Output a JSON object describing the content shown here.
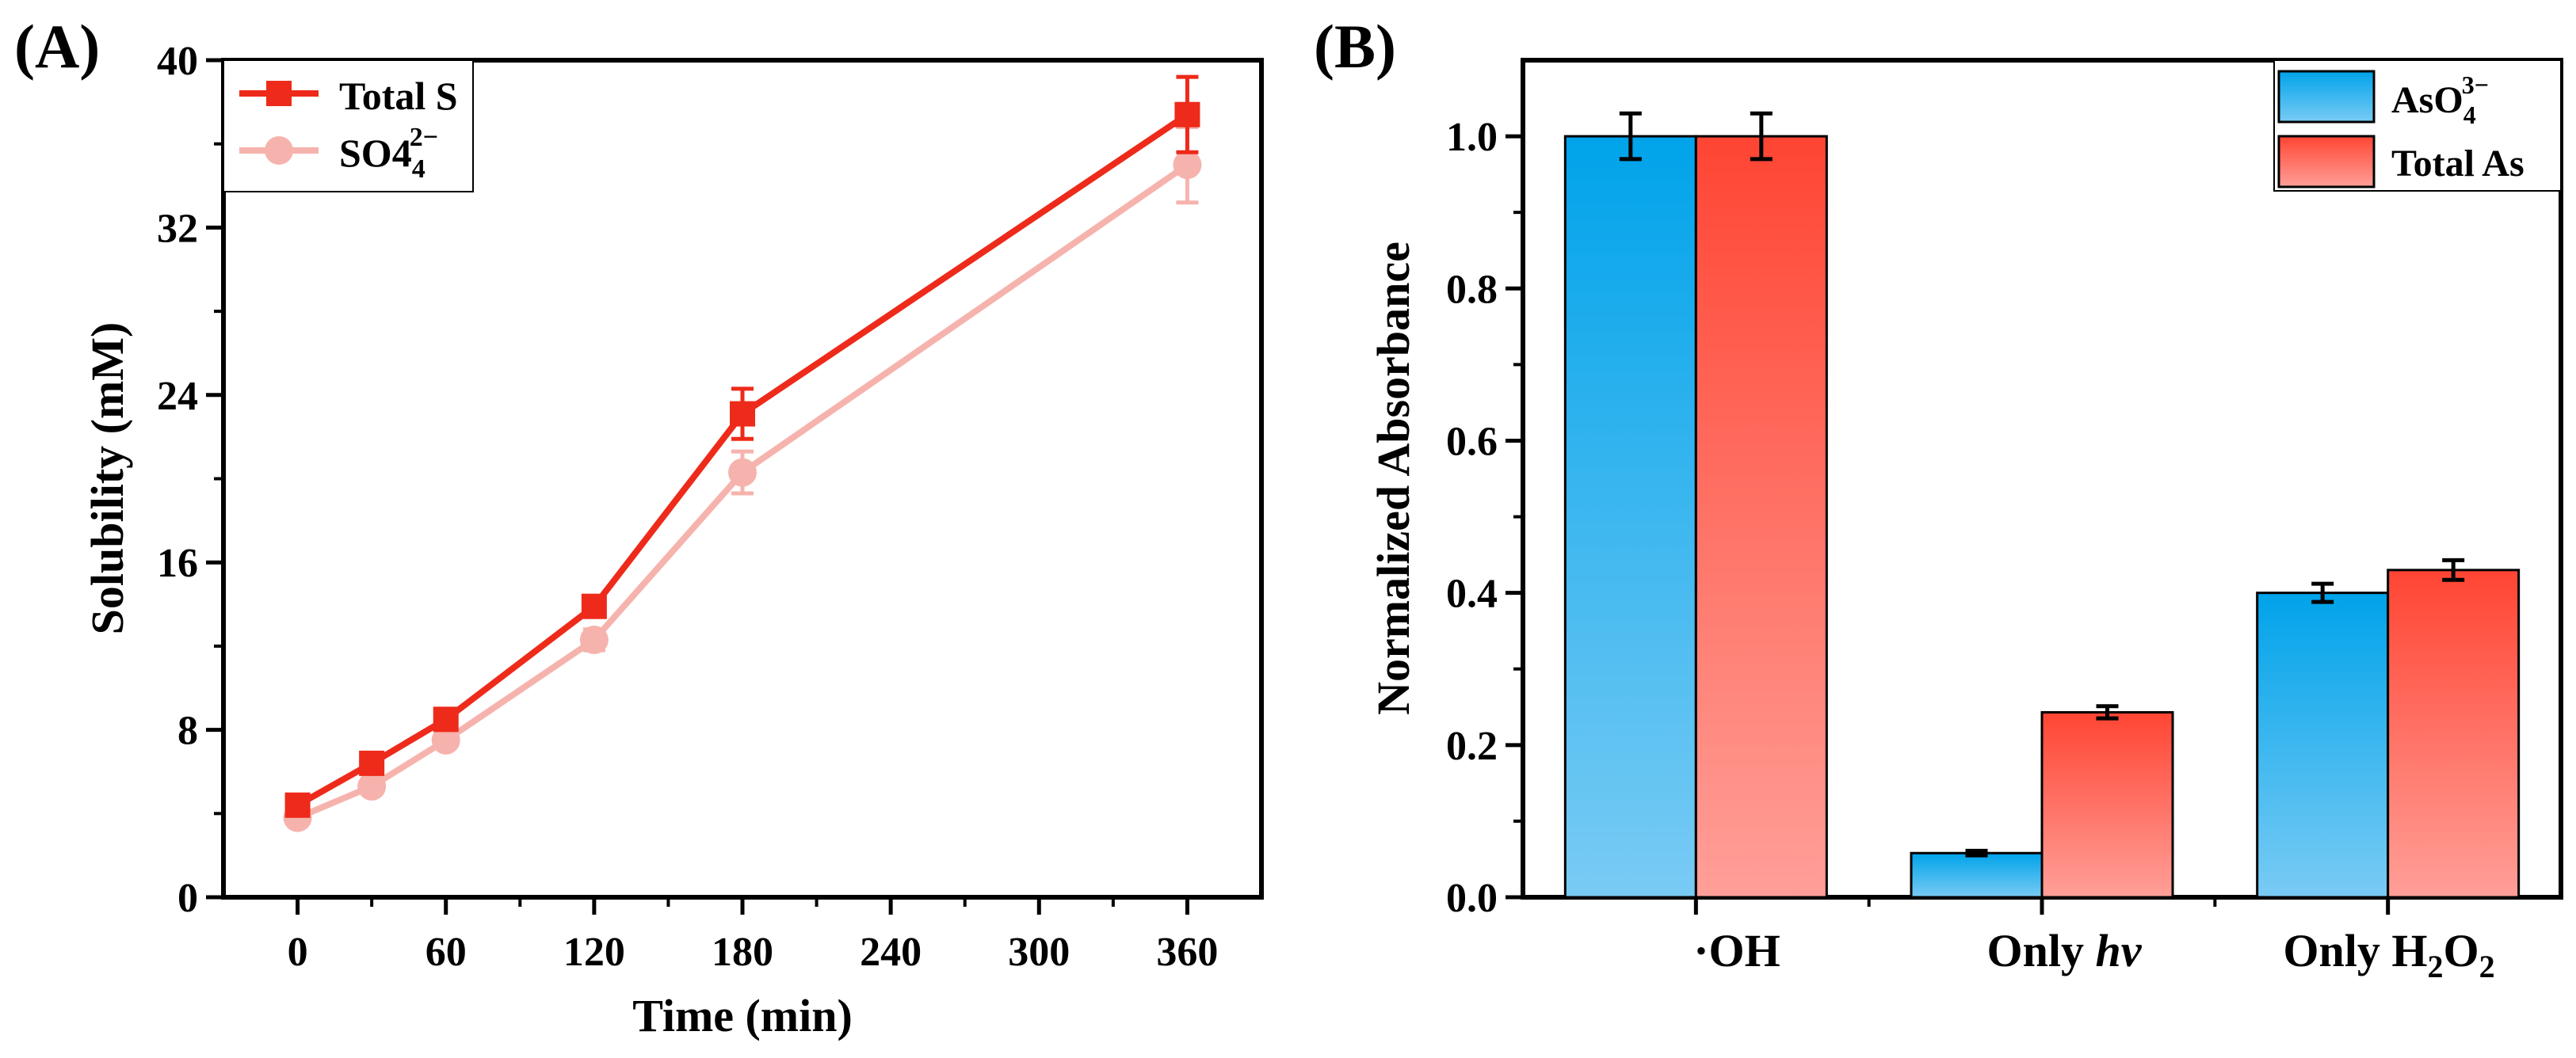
{
  "colors": {
    "total_s": "#ee2a1a",
    "sulfate": "#f6b3ad",
    "blue_top": "#00a3ea",
    "blue_bottom": "#79cbf4",
    "red_top": "#ff4533",
    "red_bottom": "#ff9f98"
  },
  "chart_data": [
    {
      "panel": "(A)",
      "type": "line",
      "xlabel": "Time (min)",
      "ylabel": "Solubility (mM)",
      "xlim": [
        -30,
        390
      ],
      "ylim": [
        0,
        40
      ],
      "xticks": [
        "0",
        "60",
        "120",
        "180",
        "240",
        "300",
        "360"
      ],
      "yticks": [
        "0",
        "8",
        "16",
        "24",
        "32",
        "40"
      ],
      "series": [
        {
          "name": "Total S",
          "marker": "square",
          "x": [
            0,
            30,
            60,
            120,
            180,
            360
          ],
          "y": [
            4.4,
            6.4,
            8.5,
            13.9,
            23.1,
            37.4
          ],
          "err": [
            0.3,
            0.3,
            0.3,
            0.4,
            1.2,
            1.8
          ]
        },
        {
          "name": "SO4",
          "sub": "4",
          "sup": "2−",
          "marker": "circle",
          "x": [
            0,
            30,
            60,
            120,
            180,
            360
          ],
          "y": [
            3.8,
            5.3,
            7.5,
            12.3,
            20.3,
            35.0
          ],
          "err": [
            0.3,
            0.3,
            0.3,
            0.5,
            1.0,
            1.8
          ]
        }
      ],
      "legend": "top-left"
    },
    {
      "panel": "(B)",
      "type": "bar",
      "ylabel": "Normalized Absorbance",
      "ylim": [
        0,
        1.1
      ],
      "yticks": [
        "0.0",
        "0.2",
        "0.4",
        "0.6",
        "0.8",
        "1.0"
      ],
      "categories": [
        {
          "pre": "·OH",
          "ital": "",
          "sub": "",
          "post": ""
        },
        {
          "pre": "Only ",
          "ital": "hv",
          "sub": "",
          "post": ""
        },
        {
          "pre": "Only H",
          "ital": "",
          "sub": "2",
          "post": "O",
          "sub2": "2"
        }
      ],
      "series": [
        {
          "name": "AsO",
          "sub": "4",
          "sup": "3−",
          "values": [
            1.0,
            0.058,
            0.4
          ],
          "err": [
            0.03,
            0.003,
            0.012
          ]
        },
        {
          "name": "Total As",
          "values": [
            1.0,
            0.243,
            0.43
          ],
          "err": [
            0.03,
            0.008,
            0.013
          ]
        }
      ],
      "legend": "top-right"
    }
  ]
}
